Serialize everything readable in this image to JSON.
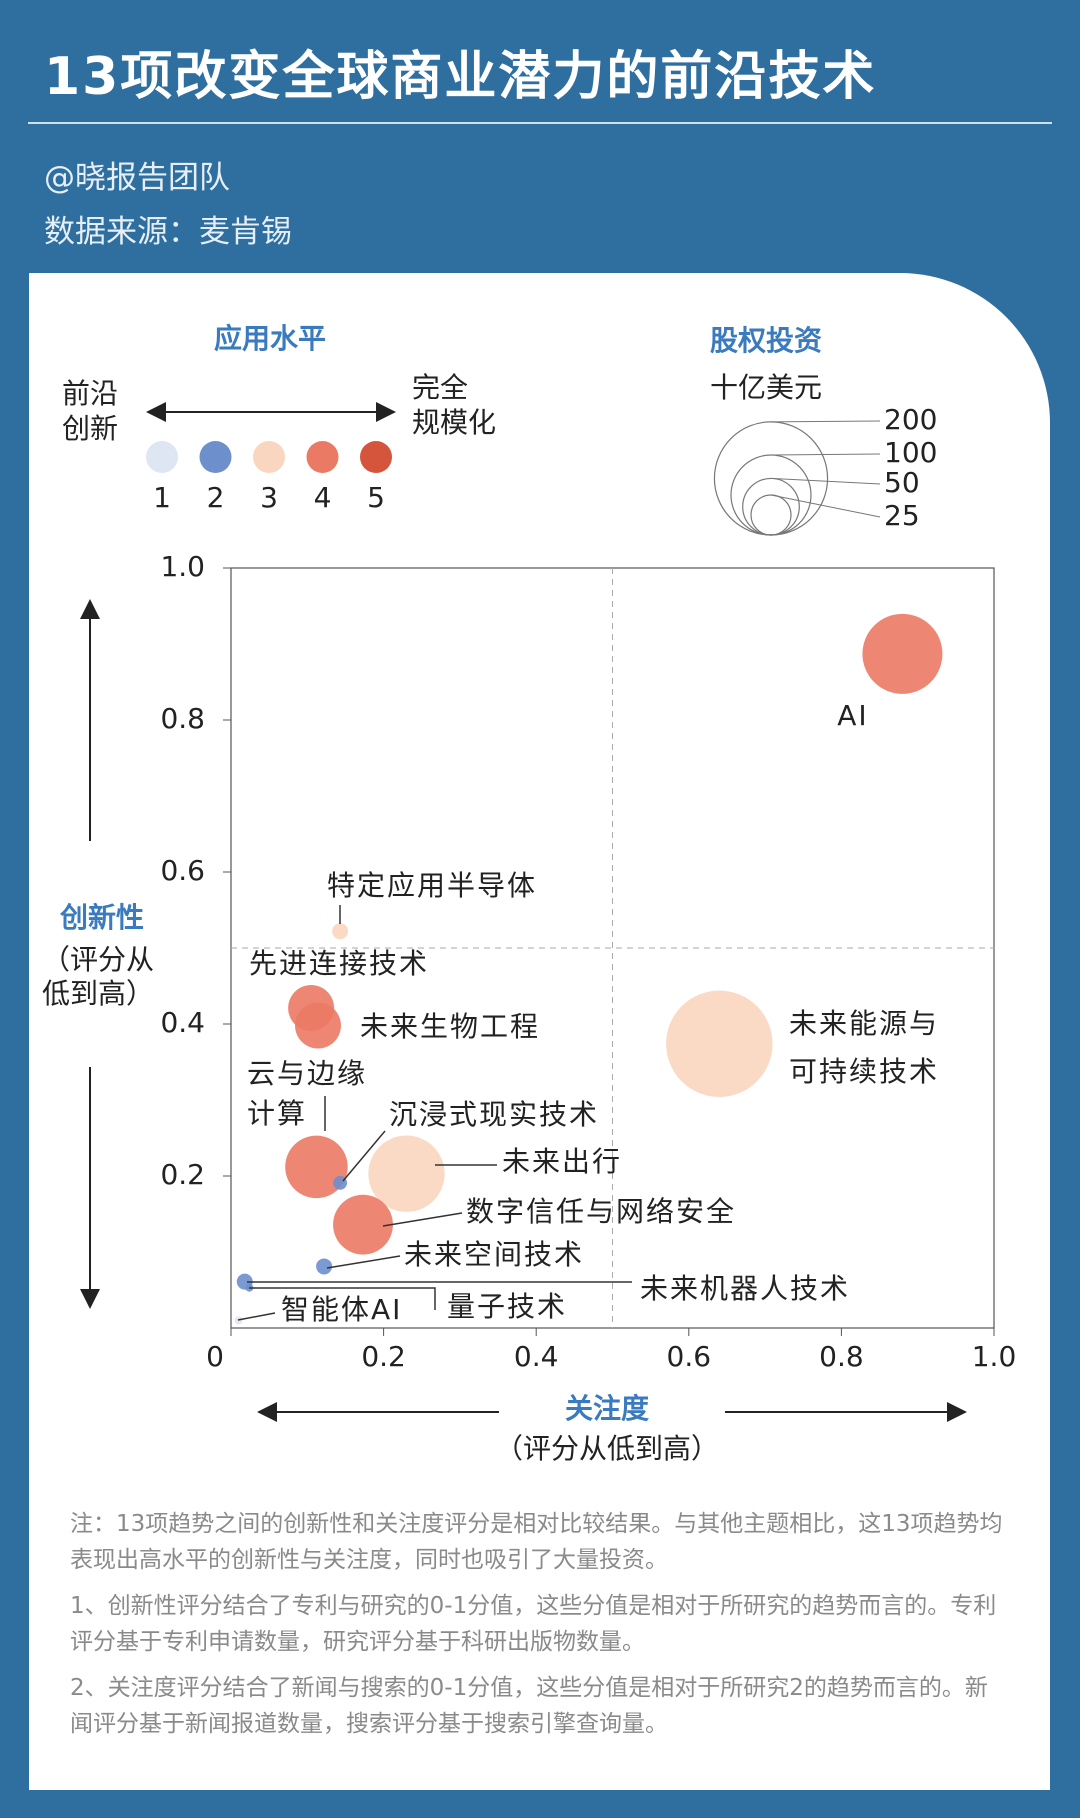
{
  "header": {
    "title": "13项改变全球商业潜力的前沿技术",
    "author": "@晓报告团队",
    "source": "数据来源：麦肯锡"
  },
  "chart_data": {
    "type": "bubble",
    "xlabel": "关注度",
    "xlabel_sub": "（评分从低到高）",
    "ylabel": "创新性",
    "ylabel_sub": [
      "（评分从",
      "低到高）"
    ],
    "xlim": [
      0,
      1
    ],
    "ylim": [
      0,
      1
    ],
    "xticks": [
      0,
      0.2,
      0.4,
      0.6,
      0.8,
      {
        "value": 1,
        "label": "1.0"
      }
    ],
    "yticks": [
      0.2,
      0.4,
      0.6,
      0.8,
      {
        "value": 1,
        "label": "1.0"
      }
    ],
    "reference_lines": {
      "x": 0.5,
      "y": 0.5
    },
    "color_legend": {
      "title": "应用水平",
      "low": [
        "前沿",
        "创新"
      ],
      "high": [
        "完全",
        "规模化"
      ],
      "levels": [
        1,
        2,
        3,
        4,
        5
      ],
      "colors": [
        "#dfe6f3",
        "#6d8fcc",
        "#f9d6bf",
        "#eb7a65",
        "#d4553b"
      ]
    },
    "size_legend": {
      "title": "股权投资",
      "unit": "十亿美元",
      "values": [
        200,
        100,
        50,
        25
      ]
    },
    "points": [
      {
        "name": "AI",
        "x": 0.88,
        "y": 0.887,
        "size": 100,
        "level": 4
      },
      {
        "name": "特定应用半导体",
        "x": 0.143,
        "y": 0.522,
        "size": 4,
        "level": 3
      },
      {
        "name": "先进连接技术",
        "x": 0.105,
        "y": 0.421,
        "size": 33,
        "level": 4
      },
      {
        "name": "未来生物工程",
        "x": 0.114,
        "y": 0.398,
        "size": 33,
        "level": 4
      },
      {
        "name": [
          "未来能源与",
          "可持续技术"
        ],
        "x": 0.64,
        "y": 0.374,
        "size": 177,
        "level": 3
      },
      {
        "name": [
          "云与边缘",
          "计算"
        ],
        "x": 0.112,
        "y": 0.212,
        "size": 61,
        "level": 4
      },
      {
        "name": "沉浸式现实技术",
        "x": 0.143,
        "y": 0.191,
        "size": 3,
        "level": 2
      },
      {
        "name": "未来出行",
        "x": 0.23,
        "y": 0.203,
        "size": 91,
        "level": 3
      },
      {
        "name": "数字信任与网络安全",
        "x": 0.173,
        "y": 0.136,
        "size": 56,
        "level": 4
      },
      {
        "name": "未来空间技术",
        "x": 0.122,
        "y": 0.081,
        "size": 4,
        "level": 2
      },
      {
        "name": "未来机器人技术",
        "x": 0.018,
        "y": 0.061,
        "size": 4,
        "level": 2
      },
      {
        "name": "量子技术",
        "x": 0.024,
        "y": 0.053,
        "size": 1,
        "level": 2
      },
      {
        "name": "智能体AI",
        "x": 0.01,
        "y": 0.01,
        "size": 1,
        "level": 1
      }
    ]
  },
  "notes": [
    "注：13项趋势之间的创新性和关注度评分是相对比较结果。与其他主题相比，这13项趋势均表现出高水平的创新性与关注度，同时也吸引了大量投资。",
    "1、创新性评分结合了专利与研究的0-1分值，这些分值是相对于所研究的趋势而言的。专利评分基于专利申请数量，研究评分基于科研出版物数量。",
    "2、关注度评分结合了新闻与搜索的0-1分值，这些分值是相对于所研究2的趋势而言的。新闻评分基于新闻报道数量，搜索评分基于搜索引擎查询量。"
  ]
}
